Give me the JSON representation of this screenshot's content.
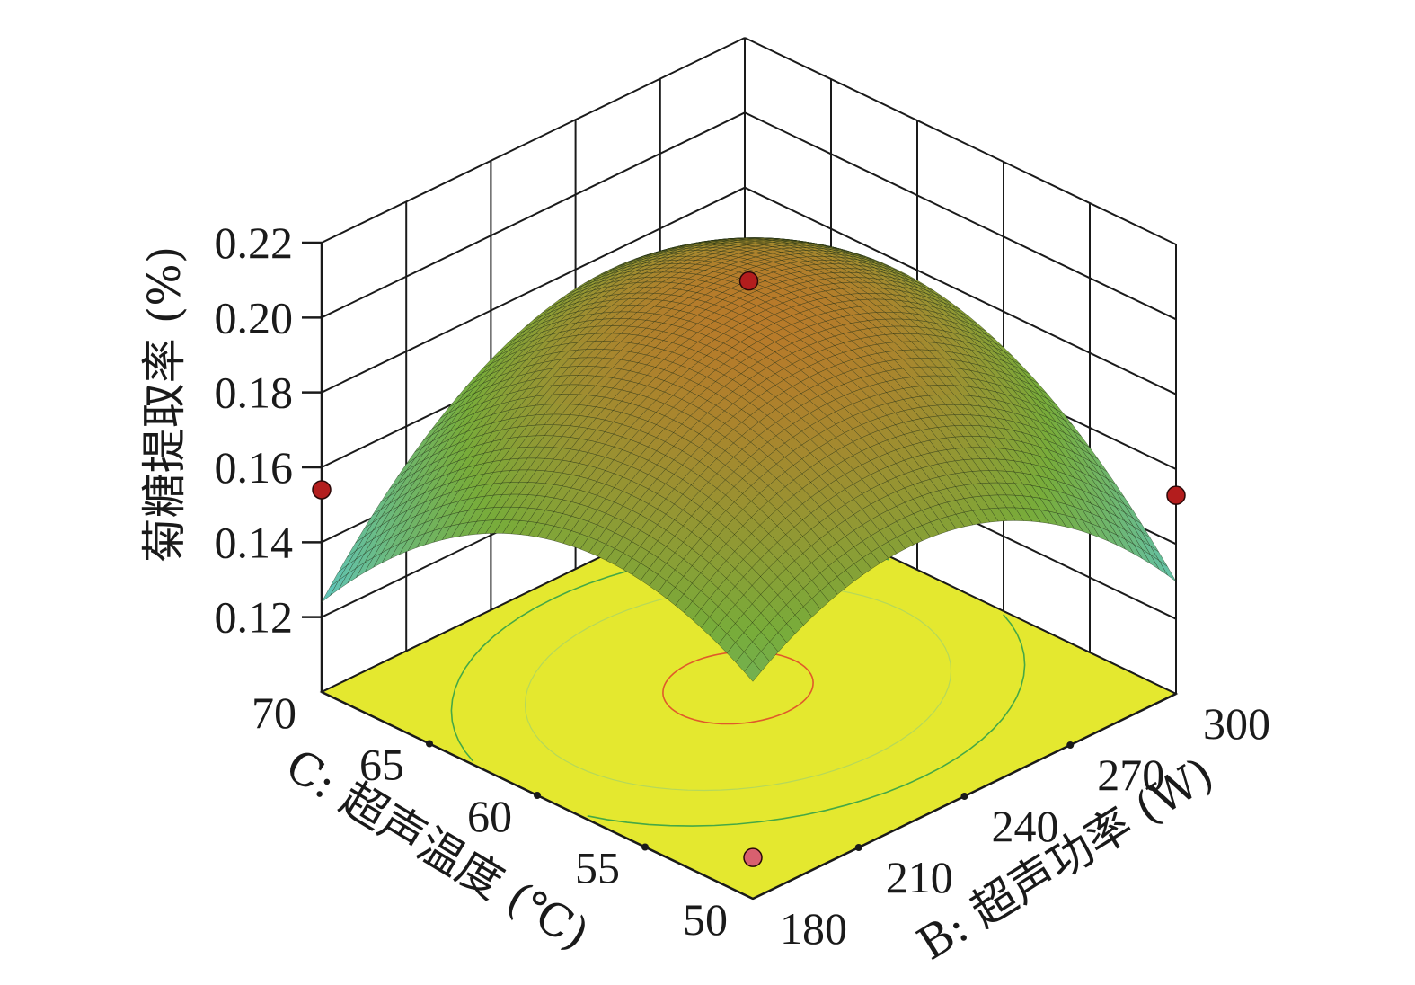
{
  "chart_data": {
    "type": "surface3d",
    "title": "",
    "zlabel": "菊糖提取率 (%)",
    "xlabel": "C: 超声温度 (℃)",
    "ylabel": "B: 超声功率 (W)",
    "z_ticks": [
      "0.12",
      "0.14",
      "0.16",
      "0.18",
      "0.20",
      "0.22"
    ],
    "x_ticks": [
      "50",
      "55",
      "60",
      "65",
      "70"
    ],
    "y_ticks": [
      "180",
      "210",
      "240",
      "270",
      "300"
    ],
    "zlim": [
      0.1,
      0.22
    ],
    "xlim": [
      50,
      70
    ],
    "ylim": [
      180,
      300
    ],
    "surface_model": {
      "form": "z = c0 + cx*xn + cy*yn - axx*xn^2 - ayy*yn^2 + axy*xn*yn",
      "coded_range": [
        -1,
        1
      ],
      "c0": 0.2,
      "cx": 0.0,
      "cy": 0.003,
      "axx": 0.028,
      "ayy": 0.028,
      "axy": 0.017,
      "grid_n": 50
    },
    "design_points": [
      {
        "temperature": 50,
        "power": 180,
        "extraction_rate": 0.111
      },
      {
        "temperature": 60,
        "power": 240,
        "extraction_rate": 0.21
      },
      {
        "temperature": 70,
        "power": 180,
        "extraction_rate": 0.154
      },
      {
        "temperature": 50,
        "power": 300,
        "extraction_rate": 0.153
      }
    ],
    "colors": {
      "floor": "#e4e82f",
      "grid": "#1a1a1a",
      "point_low": "#b31d1d",
      "point_high": "#d8606f",
      "contour_outer": "#45a845",
      "contour_mid": "#b5d85a",
      "contour_center": "#e05a2a",
      "surface_low": "#5fc6bf",
      "surface_mid": "#78ac3a",
      "surface_high": "#b87a2a"
    }
  }
}
